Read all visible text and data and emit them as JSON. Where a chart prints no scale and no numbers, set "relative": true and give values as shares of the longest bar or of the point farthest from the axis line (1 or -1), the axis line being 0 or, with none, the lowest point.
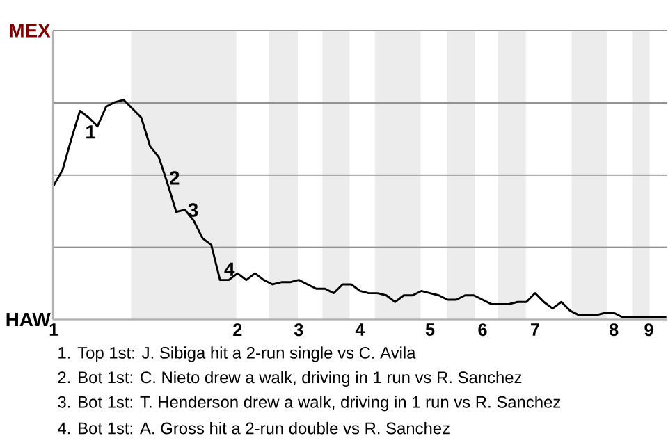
{
  "chart_data": {
    "type": "line",
    "relative": true,
    "categories": [
      "1",
      null,
      null,
      null,
      null,
      null,
      null,
      null,
      null,
      null,
      null,
      null,
      null,
      null,
      null,
      null,
      null,
      null,
      null,
      null,
      null,
      "2",
      null,
      null,
      null,
      null,
      null,
      null,
      "3",
      null,
      null,
      null,
      null,
      null,
      null,
      "4",
      null,
      null,
      null,
      null,
      null,
      null,
      null,
      "5",
      null,
      null,
      null,
      null,
      null,
      "6",
      null,
      null,
      null,
      null,
      null,
      "7",
      null,
      null,
      null,
      null,
      null,
      null,
      null,
      null,
      "8",
      null,
      null,
      null,
      "9",
      null,
      null
    ],
    "series": [
      {
        "color": "#000000",
        "values": [
          0.61,
          0.68,
          0.82,
          0.95,
          0.92,
          0.88,
          0.97,
          0.99,
          1,
          0.96,
          0.92,
          0.79,
          0.74,
          0.62,
          0.49,
          0.5,
          0.45,
          0.37,
          0.34,
          0.18,
          0.18,
          0.21,
          0.18,
          0.21,
          0.18,
          0.16,
          0.17,
          0.17,
          0.18,
          0.16,
          0.14,
          0.14,
          0.12,
          0.16,
          0.16,
          0.13,
          0.12,
          0.12,
          0.11,
          0.08,
          0.11,
          0.11,
          0.13,
          0.12,
          0.11,
          0.09,
          0.09,
          0.11,
          0.11,
          0.09,
          0.07,
          0.07,
          0.07,
          0.08,
          0.08,
          0.12,
          0.08,
          0.05,
          0.08,
          0.04,
          0.02,
          0.02,
          0.02,
          0.03,
          0.03,
          0.01,
          0.01,
          0.01,
          0.01,
          0.01,
          0.01
        ]
      }
    ],
    "ref_lines": [
      {
        "axis": "y",
        "value": 0,
        "label": "HAW",
        "color": "#939393"
      },
      {
        "axis": "y",
        "value": 0.329,
        "color": "#939393"
      },
      {
        "axis": "y",
        "value": 0.658,
        "color": "#939393"
      },
      {
        "axis": "y",
        "value": 0.987,
        "color": "#939393"
      },
      {
        "axis": "y",
        "value": 1.316,
        "label": "MEX",
        "color": "#939393"
      }
    ],
    "annotations": [
      {
        "text": "1",
        "y": 0.92
      },
      "2",
      {
        "text": "3",
        "y": 0.49
      },
      {
        "text": "4",
        "y": 0.18
      },
      "1. Top 1st: J. Sibiga hit a 2-run single vs C. Avila",
      "2. Bot 1st: C. Nieto drew a walk, driving in 1 run vs R. Sanchez",
      "3. Bot 1st: T. Henderson drew a walk, driving in 1 run vs R. Sanchez",
      "4. Bot 1st: A. Gross hit a 2-run double vs R. Sanchez"
    ]
  }
}
